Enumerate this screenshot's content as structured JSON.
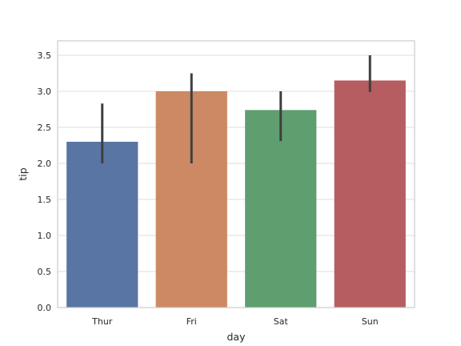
{
  "chart_data": {
    "type": "bar",
    "xlabel": "day",
    "ylabel": "tip",
    "categories": [
      "Thur",
      "Fri",
      "Sat",
      "Sun"
    ],
    "values": [
      2.3,
      3.0,
      2.74,
      3.15
    ],
    "error_low": [
      2.0,
      2.0,
      2.31,
      2.99
    ],
    "error_high": [
      2.83,
      3.25,
      3.0,
      3.5
    ],
    "colors": [
      "#5975a4",
      "#cc8963",
      "#5f9e6e",
      "#b55d60"
    ],
    "ylim": [
      0,
      3.7
    ],
    "yticks": [
      0.0,
      0.5,
      1.0,
      1.5,
      2.0,
      2.5,
      3.0,
      3.5
    ],
    "ytick_labels": [
      "0.0",
      "0.5",
      "1.0",
      "1.5",
      "2.0",
      "2.5",
      "3.0",
      "3.5"
    ],
    "grid": true,
    "grid_axis": "y",
    "errorbar_color": "#3f3f3f"
  }
}
